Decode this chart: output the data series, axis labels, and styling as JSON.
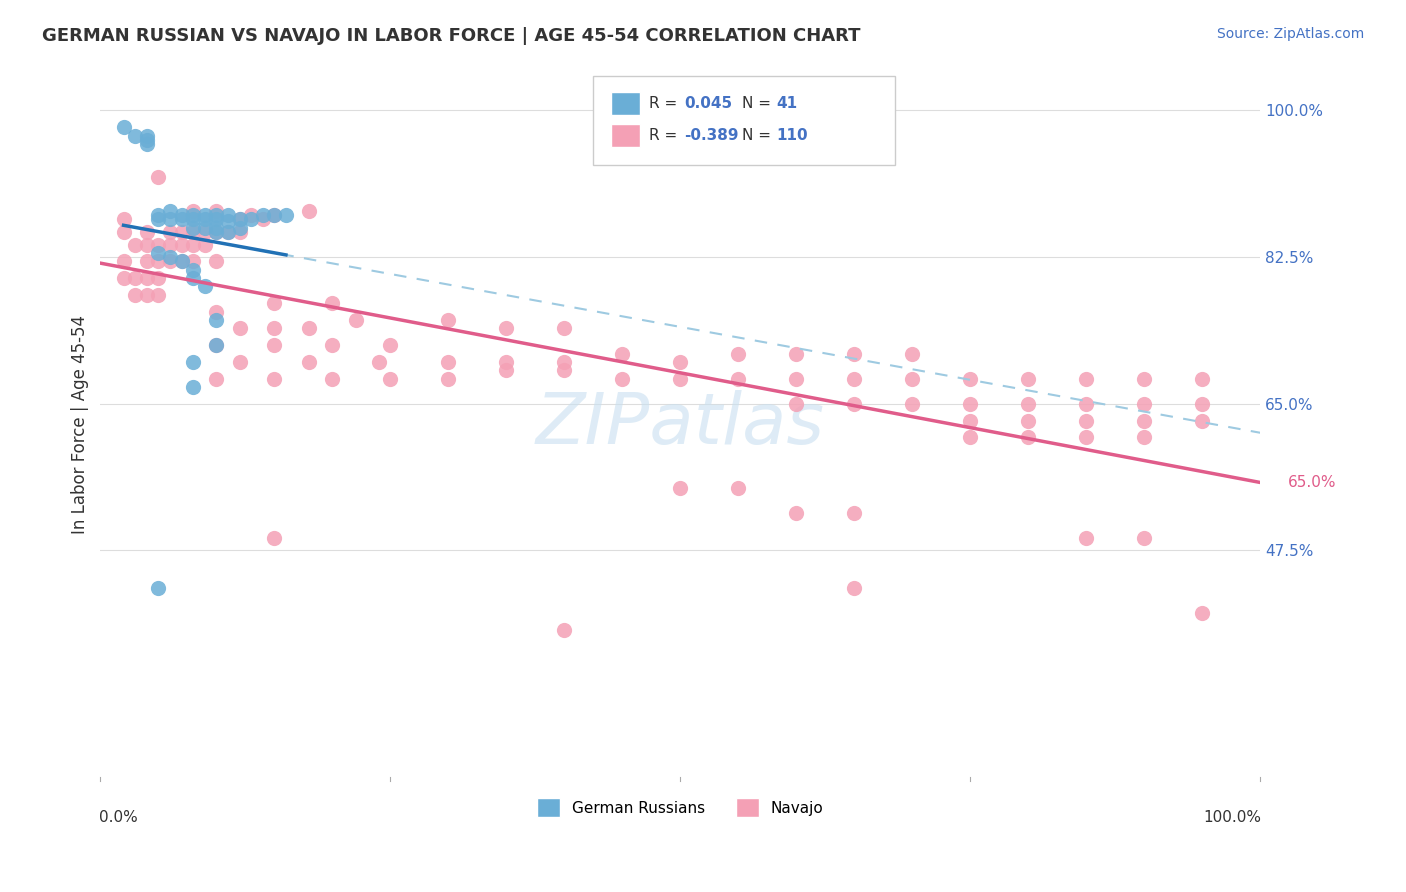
{
  "title": "GERMAN RUSSIAN VS NAVAJO IN LABOR FORCE | AGE 45-54 CORRELATION CHART",
  "source": "Source: ZipAtlas.com",
  "ylabel": "In Labor Force | Age 45-54",
  "xlim": [
    0.0,
    1.0
  ],
  "ylim": [
    0.2,
    1.05
  ],
  "r_blue": 0.045,
  "n_blue": 41,
  "r_pink": -0.389,
  "n_pink": 110,
  "blue_color": "#6aaed6",
  "pink_color": "#f4a0b5",
  "blue_line_color": "#2171b5",
  "pink_line_color": "#e05c8a",
  "dashed_line_color": "#9ecae1",
  "watermark": "ZIPatlas",
  "watermark_color": "#c8dff0",
  "legend_label_blue": "German Russians",
  "legend_label_pink": "Navajo",
  "blue_points": [
    [
      0.02,
      0.98
    ],
    [
      0.03,
      0.97
    ],
    [
      0.04,
      0.965
    ],
    [
      0.04,
      0.97
    ],
    [
      0.04,
      0.96
    ],
    [
      0.05,
      0.875
    ],
    [
      0.05,
      0.87
    ],
    [
      0.06,
      0.88
    ],
    [
      0.06,
      0.87
    ],
    [
      0.07,
      0.875
    ],
    [
      0.07,
      0.87
    ],
    [
      0.08,
      0.875
    ],
    [
      0.08,
      0.87
    ],
    [
      0.08,
      0.86
    ],
    [
      0.09,
      0.875
    ],
    [
      0.09,
      0.87
    ],
    [
      0.09,
      0.86
    ],
    [
      0.1,
      0.875
    ],
    [
      0.1,
      0.87
    ],
    [
      0.1,
      0.86
    ],
    [
      0.1,
      0.855
    ],
    [
      0.11,
      0.875
    ],
    [
      0.11,
      0.868
    ],
    [
      0.11,
      0.855
    ],
    [
      0.12,
      0.87
    ],
    [
      0.12,
      0.86
    ],
    [
      0.13,
      0.87
    ],
    [
      0.14,
      0.875
    ],
    [
      0.15,
      0.875
    ],
    [
      0.16,
      0.875
    ],
    [
      0.05,
      0.83
    ],
    [
      0.06,
      0.825
    ],
    [
      0.07,
      0.82
    ],
    [
      0.08,
      0.81
    ],
    [
      0.08,
      0.8
    ],
    [
      0.09,
      0.79
    ],
    [
      0.1,
      0.75
    ],
    [
      0.1,
      0.72
    ],
    [
      0.08,
      0.7
    ],
    [
      0.08,
      0.67
    ],
    [
      0.05,
      0.43
    ]
  ],
  "pink_points": [
    [
      0.02,
      0.87
    ],
    [
      0.05,
      0.92
    ],
    [
      0.08,
      0.88
    ],
    [
      0.1,
      0.88
    ],
    [
      0.12,
      0.87
    ],
    [
      0.13,
      0.875
    ],
    [
      0.14,
      0.87
    ],
    [
      0.15,
      0.875
    ],
    [
      0.18,
      0.88
    ],
    [
      0.02,
      0.855
    ],
    [
      0.04,
      0.855
    ],
    [
      0.06,
      0.855
    ],
    [
      0.07,
      0.855
    ],
    [
      0.08,
      0.855
    ],
    [
      0.09,
      0.855
    ],
    [
      0.1,
      0.855
    ],
    [
      0.11,
      0.855
    ],
    [
      0.12,
      0.855
    ],
    [
      0.03,
      0.84
    ],
    [
      0.04,
      0.84
    ],
    [
      0.05,
      0.84
    ],
    [
      0.06,
      0.84
    ],
    [
      0.07,
      0.84
    ],
    [
      0.08,
      0.84
    ],
    [
      0.09,
      0.84
    ],
    [
      0.02,
      0.82
    ],
    [
      0.04,
      0.82
    ],
    [
      0.05,
      0.82
    ],
    [
      0.06,
      0.82
    ],
    [
      0.07,
      0.82
    ],
    [
      0.08,
      0.82
    ],
    [
      0.1,
      0.82
    ],
    [
      0.02,
      0.8
    ],
    [
      0.03,
      0.8
    ],
    [
      0.04,
      0.8
    ],
    [
      0.05,
      0.8
    ],
    [
      0.03,
      0.78
    ],
    [
      0.04,
      0.78
    ],
    [
      0.05,
      0.78
    ],
    [
      0.1,
      0.76
    ],
    [
      0.15,
      0.77
    ],
    [
      0.2,
      0.77
    ],
    [
      0.12,
      0.74
    ],
    [
      0.15,
      0.74
    ],
    [
      0.18,
      0.74
    ],
    [
      0.22,
      0.75
    ],
    [
      0.1,
      0.72
    ],
    [
      0.15,
      0.72
    ],
    [
      0.2,
      0.72
    ],
    [
      0.25,
      0.72
    ],
    [
      0.3,
      0.75
    ],
    [
      0.35,
      0.74
    ],
    [
      0.4,
      0.74
    ],
    [
      0.12,
      0.7
    ],
    [
      0.18,
      0.7
    ],
    [
      0.24,
      0.7
    ],
    [
      0.3,
      0.7
    ],
    [
      0.35,
      0.7
    ],
    [
      0.4,
      0.7
    ],
    [
      0.45,
      0.71
    ],
    [
      0.5,
      0.7
    ],
    [
      0.55,
      0.71
    ],
    [
      0.6,
      0.71
    ],
    [
      0.65,
      0.71
    ],
    [
      0.7,
      0.71
    ],
    [
      0.1,
      0.68
    ],
    [
      0.15,
      0.68
    ],
    [
      0.2,
      0.68
    ],
    [
      0.25,
      0.68
    ],
    [
      0.3,
      0.68
    ],
    [
      0.35,
      0.69
    ],
    [
      0.4,
      0.69
    ],
    [
      0.45,
      0.68
    ],
    [
      0.5,
      0.68
    ],
    [
      0.55,
      0.68
    ],
    [
      0.6,
      0.68
    ],
    [
      0.65,
      0.68
    ],
    [
      0.7,
      0.68
    ],
    [
      0.75,
      0.68
    ],
    [
      0.8,
      0.68
    ],
    [
      0.85,
      0.68
    ],
    [
      0.9,
      0.68
    ],
    [
      0.95,
      0.68
    ],
    [
      0.6,
      0.65
    ],
    [
      0.65,
      0.65
    ],
    [
      0.7,
      0.65
    ],
    [
      0.75,
      0.65
    ],
    [
      0.8,
      0.65
    ],
    [
      0.85,
      0.65
    ],
    [
      0.9,
      0.65
    ],
    [
      0.95,
      0.65
    ],
    [
      0.75,
      0.63
    ],
    [
      0.8,
      0.63
    ],
    [
      0.85,
      0.63
    ],
    [
      0.9,
      0.63
    ],
    [
      0.95,
      0.63
    ],
    [
      0.75,
      0.61
    ],
    [
      0.8,
      0.61
    ],
    [
      0.85,
      0.61
    ],
    [
      0.9,
      0.61
    ],
    [
      0.5,
      0.55
    ],
    [
      0.55,
      0.55
    ],
    [
      0.6,
      0.52
    ],
    [
      0.65,
      0.52
    ],
    [
      0.15,
      0.49
    ],
    [
      0.85,
      0.49
    ],
    [
      0.9,
      0.49
    ],
    [
      0.65,
      0.43
    ],
    [
      0.95,
      0.4
    ],
    [
      0.4,
      0.38
    ]
  ]
}
